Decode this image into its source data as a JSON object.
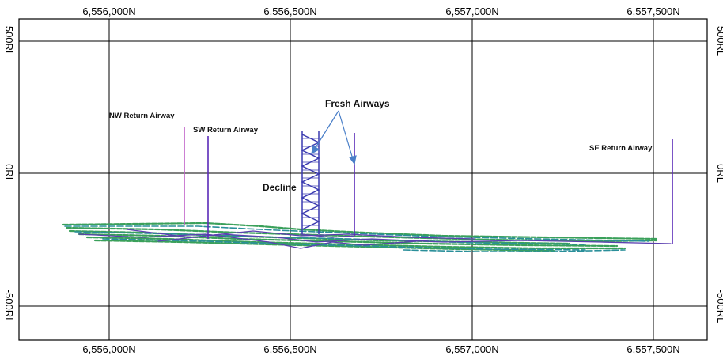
{
  "easting_labels": [
    "6,556,000N",
    "6,556,500N",
    "6,557,000N",
    "6,557,500N"
  ],
  "rl_labels": [
    "500RL",
    "0RL",
    "-500RL"
  ],
  "annotations": {
    "nw_return": "NW Return Airway",
    "sw_return": "SW Return Airway",
    "fresh": "Fresh Airways",
    "decline": "Decline",
    "se_return": "SE Return Airway"
  },
  "colors": {
    "grid": "#000000",
    "workings_green": "#3aa05a",
    "workings_teal": "#2a8f9a",
    "workings_purple": "#5b3fb0",
    "nw_raise": "#c060c8",
    "raise_purple": "#5a2ab8",
    "arrow": "#4a7fc8"
  }
}
